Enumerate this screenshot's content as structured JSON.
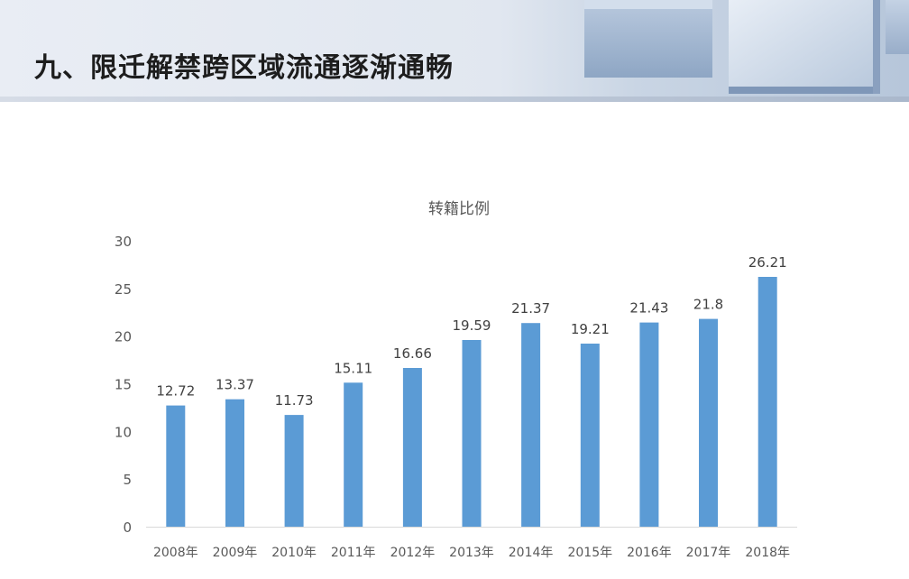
{
  "page": {
    "title": "九、限迁解禁跨区域流通逐渐通畅"
  },
  "colors": {
    "bar": "#5b9bd5",
    "axis_text": "#595959",
    "label_text": "#404040",
    "baseline": "#d9d9d9"
  },
  "chart_data": {
    "type": "bar",
    "title": "转籍比例",
    "categories": [
      "2008年",
      "2009年",
      "2010年",
      "2011年",
      "2012年",
      "2013年",
      "2014年",
      "2015年",
      "2016年",
      "2017年",
      "2018年"
    ],
    "values": [
      12.72,
      13.37,
      11.73,
      15.11,
      16.66,
      19.59,
      21.37,
      19.21,
      21.43,
      21.8,
      26.21
    ],
    "value_labels": [
      "12.72",
      "13.37",
      "11.73",
      "15.11",
      "16.66",
      "19.59",
      "21.37",
      "19.21",
      "21.43",
      "21.8",
      "26.21"
    ],
    "yticks": [
      "0",
      "5",
      "10",
      "15",
      "20",
      "25",
      "30"
    ],
    "ylim": [
      0,
      30
    ],
    "grid": false,
    "legend": "none"
  }
}
